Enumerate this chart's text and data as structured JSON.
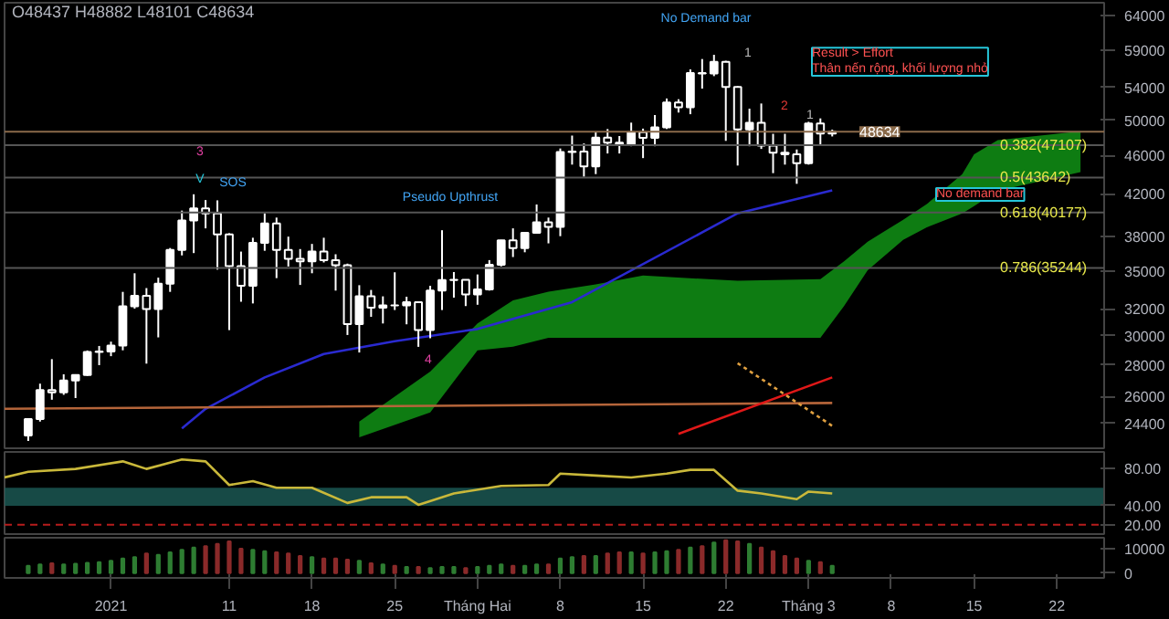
{
  "chart_data": [
    {
      "type": "candlestick",
      "subtitle": "O48437 H48882 L48101 C48634",
      "color": "#ffffff",
      "log": true,
      "ylim": [
        23000,
        66000
      ],
      "yticks": [
        24400,
        26000,
        28000,
        30000,
        32000,
        35000,
        38000,
        42000,
        46000,
        50000,
        54000,
        59000,
        64000
      ],
      "xlim": [
        "2020-12-23",
        "2021-03-26"
      ],
      "tick_labels": "y",
      "grid": false,
      "x": [
        "2020-12-25",
        "2020-12-26",
        "2020-12-27",
        "2020-12-28",
        "2020-12-29",
        "2020-12-30",
        "2020-12-31",
        "2021-01-01",
        "2021-01-02",
        "2021-01-03",
        "2021-01-04",
        "2021-01-05",
        "2021-01-06",
        "2021-01-07",
        "2021-01-08",
        "2021-01-09",
        "2021-01-10",
        "2021-01-11",
        "2021-01-12",
        "2021-01-13",
        "2021-01-14",
        "2021-01-15",
        "2021-01-16",
        "2021-01-17",
        "2021-01-18",
        "2021-01-19",
        "2021-01-20",
        "2021-01-21",
        "2021-01-22",
        "2021-01-23",
        "2021-01-24",
        "2021-01-25",
        "2021-01-26",
        "2021-01-27",
        "2021-01-28",
        "2021-01-29",
        "2021-01-30",
        "2021-01-31",
        "2021-02-01",
        "2021-02-02",
        "2021-02-03",
        "2021-02-04",
        "2021-02-05",
        "2021-02-06",
        "2021-02-07",
        "2021-02-08",
        "2021-02-09",
        "2021-02-10",
        "2021-02-11",
        "2021-02-12",
        "2021-02-13",
        "2021-02-14",
        "2021-02-15",
        "2021-02-16",
        "2021-02-17",
        "2021-02-18",
        "2021-02-19",
        "2021-02-20",
        "2021-02-21",
        "2021-02-22",
        "2021-02-23",
        "2021-02-24",
        "2021-02-25",
        "2021-02-26",
        "2021-02-27",
        "2021-02-28",
        "2021-03-01",
        "2021-03-02",
        "2021-03-03"
      ],
      "ohlc": [
        [
          23700,
          24700,
          23400,
          24650
        ],
        [
          24650,
          26800,
          24500,
          26400
        ],
        [
          26400,
          28400,
          25800,
          26250
        ],
        [
          26250,
          27400,
          26100,
          27000
        ],
        [
          27000,
          27400,
          25900,
          27350
        ],
        [
          27350,
          28990,
          27300,
          28880
        ],
        [
          28880,
          29300,
          28000,
          28920
        ],
        [
          28920,
          29600,
          28600,
          29330
        ],
        [
          29330,
          33300,
          29000,
          32180
        ],
        [
          32180,
          34800,
          32000,
          33000
        ],
        [
          33000,
          33600,
          28100,
          31980
        ],
        [
          31980,
          34440,
          29900,
          33950
        ],
        [
          33950,
          36940,
          33300,
          36770
        ],
        [
          36770,
          40360,
          36300,
          39430
        ],
        [
          39430,
          41950,
          36500,
          40580
        ],
        [
          40580,
          41380,
          38700,
          40090
        ],
        [
          40090,
          41350,
          35100,
          38150
        ],
        [
          38150,
          38260,
          30420,
          35400
        ],
        [
          35400,
          36630,
          32530,
          33790
        ],
        [
          33790,
          37850,
          32400,
          37390
        ],
        [
          37390,
          40100,
          36700,
          39150
        ],
        [
          39150,
          39700,
          34400,
          36770
        ],
        [
          36770,
          37950,
          35360,
          36000
        ],
        [
          36000,
          36850,
          33850,
          35800
        ],
        [
          35800,
          37300,
          34800,
          36630
        ],
        [
          36630,
          37850,
          35700,
          35890
        ],
        [
          35890,
          36400,
          33400,
          35470
        ],
        [
          35470,
          35600,
          30070,
          30850
        ],
        [
          30850,
          33830,
          28850,
          32950
        ],
        [
          32950,
          33450,
          31390,
          32080
        ],
        [
          32080,
          32950,
          30900,
          32260
        ],
        [
          32260,
          34880,
          31900,
          32250
        ],
        [
          32250,
          32920,
          30840,
          32500
        ],
        [
          32500,
          32560,
          29240,
          30420
        ],
        [
          30420,
          33780,
          29840,
          33400
        ],
        [
          33400,
          38530,
          31900,
          34250
        ],
        [
          34250,
          34900,
          32850,
          34260
        ],
        [
          34260,
          34290,
          32200,
          33100
        ],
        [
          33100,
          34700,
          32300,
          33500
        ],
        [
          33500,
          35900,
          33400,
          35500
        ],
        [
          35500,
          37650,
          35370,
          37620
        ],
        [
          37620,
          38700,
          36160,
          36930
        ],
        [
          36930,
          38310,
          36570,
          38290
        ],
        [
          38290,
          40950,
          38220,
          39250
        ],
        [
          39250,
          39700,
          37350,
          38830
        ],
        [
          38830,
          46750,
          37990,
          46370
        ],
        [
          46370,
          48200,
          45000,
          46420
        ],
        [
          46420,
          47310,
          43730,
          44810
        ],
        [
          44810,
          48630,
          44000,
          47970
        ],
        [
          47970,
          48950,
          46200,
          47400
        ],
        [
          47400,
          48150,
          46200,
          47190
        ],
        [
          47190,
          49700,
          47000,
          48600
        ],
        [
          48600,
          49000,
          45700,
          47930
        ],
        [
          47930,
          50600,
          47000,
          49140
        ],
        [
          49140,
          52620,
          48950,
          52120
        ],
        [
          52120,
          52530,
          50900,
          51550
        ],
        [
          51550,
          56370,
          50700,
          55900
        ],
        [
          55900,
          57770,
          53860,
          55840
        ],
        [
          55840,
          58350,
          55480,
          57400
        ],
        [
          57400,
          57530,
          47600,
          54090
        ],
        [
          54090,
          54180,
          44900,
          48900
        ],
        [
          48900,
          51370,
          47000,
          49680
        ],
        [
          49680,
          52000,
          46700,
          47070
        ],
        [
          47070,
          48400,
          44100,
          46280
        ],
        [
          46280,
          48400,
          45000,
          46100
        ],
        [
          46100,
          46640,
          43000,
          45140
        ],
        [
          45140,
          49800,
          45000,
          49590
        ],
        [
          49590,
          50200,
          47050,
          48437
        ],
        [
          48437,
          48882,
          48101,
          48634
        ]
      ],
      "series": [
        {
          "type": "line",
          "color": "#0f8a14",
          "values": [
            null,
            null,
            null,
            null,
            null,
            null,
            null,
            null,
            null,
            null,
            null,
            null,
            null,
            null,
            null,
            null,
            null
          ],
          "upper": [
            24500,
            27570,
            30900,
            32630,
            33320,
            33900,
            34610,
            34180,
            34320,
            35800,
            37500,
            39500,
            40980,
            44000,
            46100,
            47670,
            48690
          ],
          "x": [
            "2021-01-22",
            "2021-01-28",
            "2021-02-01",
            "2021-02-04",
            "2021-02-07",
            "2021-02-11",
            "2021-02-15",
            "2021-02-23",
            "2021-03-02",
            "2021-03-04",
            "2021-03-06",
            "2021-03-09",
            "2021-03-11",
            "2021-03-14",
            "2021-03-15",
            "2021-03-17",
            "2021-03-24"
          ],
          "lower": [
            23600,
            25030,
            29000,
            29250,
            29870,
            29870,
            29870,
            29870,
            29870,
            32200,
            35050,
            37650,
            38800,
            40100,
            40800,
            42300,
            44200
          ]
        },
        {
          "type": "line",
          "color": "#2a2ad0",
          "x": [
            "2021-01-07",
            "2021-01-09",
            "2021-01-14",
            "2021-01-19",
            "2021-01-25",
            "2021-02-01",
            "2021-02-09",
            "2021-02-23",
            "2021-03-03"
          ],
          "values": [
            24100,
            25250,
            27200,
            28750,
            29630,
            30500,
            32500,
            40100,
            42350
          ]
        },
        {
          "type": "line",
          "color": "#b5653a",
          "x": [
            "2020-12-23",
            "2021-03-03"
          ],
          "values": [
            25250,
            25600
          ]
        },
        {
          "type": "line",
          "color": "#e01818",
          "x": [
            "2021-02-18",
            "2021-03-03"
          ],
          "values": [
            23800,
            27200
          ]
        },
        {
          "type": "line",
          "color": "#e0a040",
          "line_style": "dotted",
          "x": [
            "2021-02-23",
            "2021-03-03"
          ],
          "values": [
            28130,
            24250
          ]
        }
      ],
      "ref_lines": [
        {
          "axis": "y",
          "value": 47107,
          "label": "0.382(47107)",
          "color": "#555555"
        },
        {
          "axis": "y",
          "value": 43642,
          "label": "0.5(43642)",
          "color": "#555555"
        },
        {
          "axis": "y",
          "value": 40177,
          "label": "0.618(40177)",
          "color": "#555555"
        },
        {
          "axis": "y",
          "value": 35244,
          "label": "0.786(35244)",
          "color": "#555555"
        },
        {
          "axis": "y",
          "value": 48634,
          "label": "48634",
          "color": "#8a6a4a"
        }
      ],
      "annotations": [
        "3",
        "V",
        "SOS",
        "Pseudo Upthrust",
        "4",
        "No Demand bar",
        "1",
        "2",
        "1",
        "Result > Effort\nThân nến rộng, khối lượng nhỏ",
        "No demand bar"
      ]
    },
    {
      "type": "line",
      "color": "#c9b83a",
      "xlim": [
        "2020-12-23",
        "2021-03-26"
      ],
      "ylim": [
        10,
        97
      ],
      "yticks": [
        {
          "value": 80,
          "label": "80.00"
        },
        {
          "value": 40,
          "label": "40.00"
        },
        {
          "value": 20,
          "label": "20.00"
        }
      ],
      "tick_labels": "y",
      "grid": false,
      "x": [
        "2020-12-23",
        "2020-12-25",
        "2020-12-29",
        "2021-01-02",
        "2021-01-04",
        "2021-01-07",
        "2021-01-09",
        "2021-01-11",
        "2021-01-13",
        "2021-01-15",
        "2021-01-18",
        "2021-01-21",
        "2021-01-23",
        "2021-01-26",
        "2021-01-27",
        "2021-01-30",
        "2021-02-03",
        "2021-02-07",
        "2021-02-08",
        "2021-02-11",
        "2021-02-14",
        "2021-02-17",
        "2021-02-19",
        "2021-02-21",
        "2021-02-23",
        "2021-02-25",
        "2021-02-28",
        "2021-03-01",
        "2021-03-03"
      ],
      "values": [
        70,
        76,
        79,
        87,
        79,
        89,
        87,
        62,
        66,
        59,
        59,
        43,
        49,
        49,
        41,
        53,
        61,
        62,
        74,
        72,
        70,
        74,
        78,
        78,
        56,
        53,
        47,
        55,
        53
      ],
      "bands": [
        {
          "axis": "y",
          "from": 40,
          "to": 59,
          "color": "#1d5c57"
        }
      ],
      "ref_lines": [
        {
          "axis": "y",
          "value": 20,
          "color": "#b71c1c",
          "line_style": "dashed"
        }
      ]
    },
    {
      "type": "bar",
      "xlim": [
        "2020-12-23",
        "2021-03-26"
      ],
      "ylim": [
        -2000,
        14500
      ],
      "yticks": [
        0,
        10000
      ],
      "grid": false,
      "xticks": [
        {
          "value": "2021-01-01",
          "label": "2021"
        },
        {
          "value": "2021-01-11",
          "label": "11"
        },
        {
          "value": "2021-01-18",
          "label": "18"
        },
        {
          "value": "2021-01-25",
          "label": "25"
        },
        {
          "value": "2021-02-01",
          "label": "Tháng Hai"
        },
        {
          "value": "2021-02-08",
          "label": "8"
        },
        {
          "value": "2021-02-15",
          "label": "15"
        },
        {
          "value": "2021-02-22",
          "label": "22"
        },
        {
          "value": "2021-03-01",
          "label": "Tháng 3"
        },
        {
          "value": "2021-03-08",
          "label": "8"
        },
        {
          "value": "2021-03-15",
          "label": "15"
        },
        {
          "value": "2021-03-22",
          "label": "22"
        }
      ],
      "x": [
        "2020-12-25",
        "2020-12-26",
        "2020-12-27",
        "2020-12-28",
        "2020-12-29",
        "2020-12-30",
        "2020-12-31",
        "2021-01-01",
        "2021-01-02",
        "2021-01-03",
        "2021-01-04",
        "2021-01-05",
        "2021-01-06",
        "2021-01-07",
        "2021-01-08",
        "2021-01-09",
        "2021-01-10",
        "2021-01-11",
        "2021-01-12",
        "2021-01-13",
        "2021-01-14",
        "2021-01-15",
        "2021-01-16",
        "2021-01-17",
        "2021-01-18",
        "2021-01-19",
        "2021-01-20",
        "2021-01-21",
        "2021-01-22",
        "2021-01-23",
        "2021-01-24",
        "2021-01-25",
        "2021-01-26",
        "2021-01-27",
        "2021-01-28",
        "2021-01-29",
        "2021-01-30",
        "2021-01-31",
        "2021-02-01",
        "2021-02-02",
        "2021-02-03",
        "2021-02-04",
        "2021-02-05",
        "2021-02-06",
        "2021-02-07",
        "2021-02-08",
        "2021-02-09",
        "2021-02-10",
        "2021-02-11",
        "2021-02-12",
        "2021-02-13",
        "2021-02-14",
        "2021-02-15",
        "2021-02-16",
        "2021-02-17",
        "2021-02-18",
        "2021-02-19",
        "2021-02-20",
        "2021-02-21",
        "2021-02-22",
        "2021-02-23",
        "2021-02-24",
        "2021-02-25",
        "2021-02-26",
        "2021-02-27",
        "2021-02-28",
        "2021-03-01",
        "2021-03-02",
        "2021-03-03"
      ],
      "values": [
        3000,
        3500,
        4000,
        3500,
        3800,
        4200,
        4500,
        5000,
        6000,
        6500,
        8000,
        7500,
        8500,
        9500,
        10500,
        11000,
        12000,
        13000,
        10000,
        9500,
        9000,
        8500,
        8000,
        7000,
        6500,
        6000,
        6000,
        5500,
        5000,
        4000,
        3500,
        3000,
        2500,
        2500,
        2000,
        2500,
        2500,
        2000,
        2500,
        3000,
        3500,
        3000,
        3000,
        3500,
        3500,
        6000,
        6500,
        7000,
        7000,
        8000,
        8500,
        8500,
        8000,
        8500,
        9000,
        9500,
        10500,
        11000,
        12500,
        13500,
        13000,
        12000,
        10500,
        9000,
        7000,
        6000,
        5000,
        4500,
        3000
      ],
      "colors": [
        "#2e7d32",
        "#2e7d32",
        "#8b2a2a",
        "#2e7d32",
        "#2e7d32",
        "#2e7d32",
        "#2e7d32",
        "#2e7d32",
        "#2e7d32",
        "#2e7d32",
        "#8b2a2a",
        "#2e7d32",
        "#2e7d32",
        "#2e7d32",
        "#2e7d32",
        "#8b2a2a",
        "#8b2a2a",
        "#8b2a2a",
        "#8b2a2a",
        "#2e7d32",
        "#2e7d32",
        "#8b2a2a",
        "#8b2a2a",
        "#8b2a2a",
        "#2e7d32",
        "#8b2a2a",
        "#8b2a2a",
        "#8b2a2a",
        "#2e7d32",
        "#8b2a2a",
        "#2e7d32",
        "#8b2a2a",
        "#2e7d32",
        "#8b2a2a",
        "#2e7d32",
        "#2e7d32",
        "#2e7d32",
        "#8b2a2a",
        "#2e7d32",
        "#2e7d32",
        "#2e7d32",
        "#8b2a2a",
        "#2e7d32",
        "#2e7d32",
        "#8b2a2a",
        "#2e7d32",
        "#2e7d32",
        "#8b2a2a",
        "#2e7d32",
        "#8b2a2a",
        "#8b2a2a",
        "#2e7d32",
        "#8b2a2a",
        "#2e7d32",
        "#2e7d32",
        "#8b2a2a",
        "#2e7d32",
        "#8b2a2a",
        "#2e7d32",
        "#8b2a2a",
        "#8b2a2a",
        "#2e7d32",
        "#8b2a2a",
        "#8b2a2a",
        "#8b2a2a",
        "#8b2a2a",
        "#2e7d32",
        "#8b2a2a",
        "#2e7d32"
      ]
    }
  ]
}
